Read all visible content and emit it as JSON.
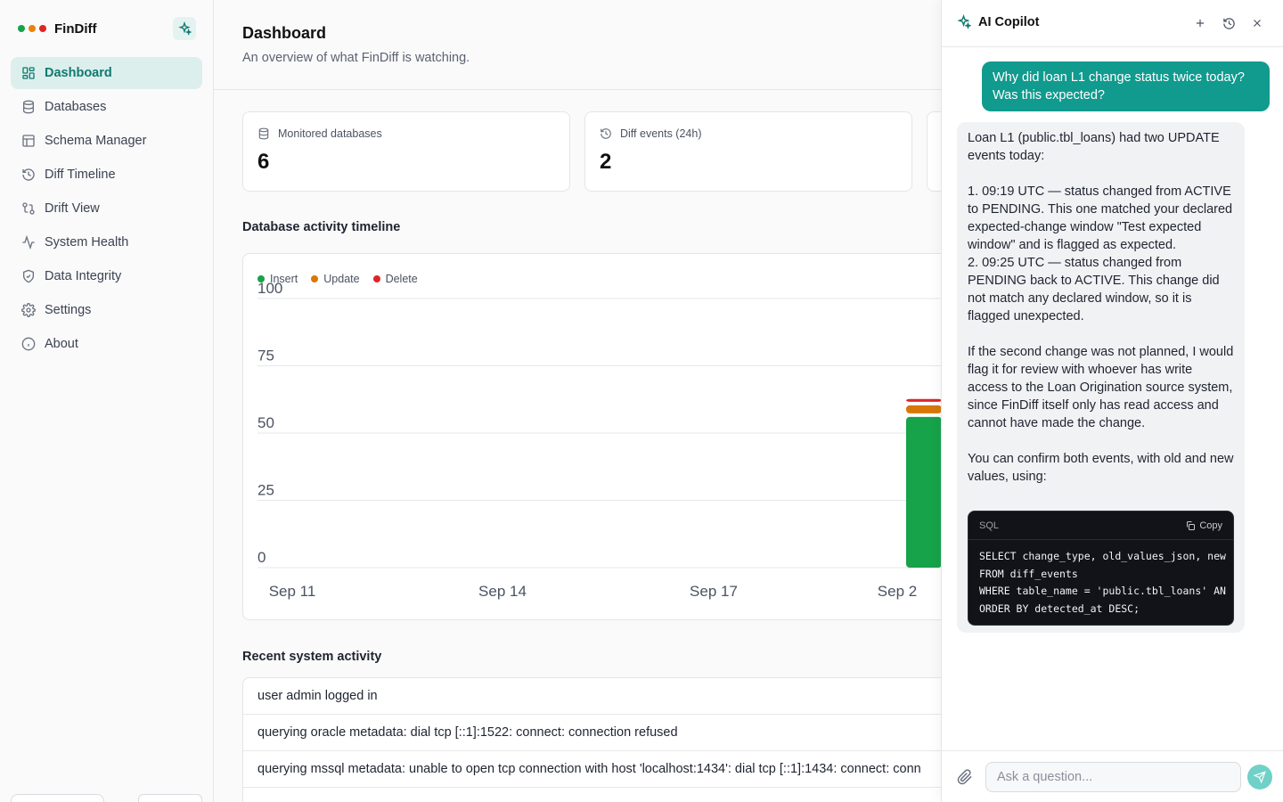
{
  "app": {
    "name": "FinDiff",
    "traffic_dots": [
      "#16a34a",
      "#e8820c",
      "#dc2626"
    ],
    "accent": "#0f7a70"
  },
  "sidebar": {
    "items": [
      {
        "label": "Dashboard",
        "icon": "dashboard-icon",
        "active": true
      },
      {
        "label": "Databases",
        "icon": "database-icon"
      },
      {
        "label": "Schema Manager",
        "icon": "table-icon"
      },
      {
        "label": "Diff Timeline",
        "icon": "history-icon"
      },
      {
        "label": "Drift View",
        "icon": "git-compare-icon"
      },
      {
        "label": "System Health",
        "icon": "activity-icon"
      },
      {
        "label": "Data Integrity",
        "icon": "shield-icon"
      },
      {
        "label": "Settings",
        "icon": "gear-icon"
      },
      {
        "label": "About",
        "icon": "info-icon"
      }
    ]
  },
  "header": {
    "title": "Dashboard",
    "subtitle": "An overview of what FinDiff is watching."
  },
  "stats": [
    {
      "label": "Monitored databases",
      "value": "6",
      "icon": "database-icon"
    },
    {
      "label": "Diff events (24h)",
      "value": "2",
      "icon": "history-icon"
    }
  ],
  "timeline": {
    "title": "Database activity timeline"
  },
  "chart_data": {
    "type": "bar",
    "stacked": true,
    "title": "Database activity timeline",
    "x_ticks": [
      "Sep 11",
      "Sep 14",
      "Sep 17",
      "Sep 2"
    ],
    "y_ticks": [
      "0",
      "25",
      "50",
      "75",
      "100"
    ],
    "ylim": [
      0,
      100
    ],
    "grid": true,
    "legend_position": "top-left",
    "series": [
      {
        "name": "Insert",
        "color": "#16a34a",
        "values": [
          56
        ]
      },
      {
        "name": "Update",
        "color": "#d97706",
        "values": [
          3
        ]
      },
      {
        "name": "Delete",
        "color": "#dc2626",
        "values": [
          1
        ]
      }
    ]
  },
  "activity": {
    "title": "Recent system activity",
    "rows": [
      "user admin logged in",
      "querying oracle metadata: dial tcp [::1]:1522: connect: connection refused",
      "querying mssql metadata: unable to open tcp connection with host 'localhost:1434': dial tcp [::1]:1434: connect: conn",
      ""
    ]
  },
  "copilot": {
    "title": "AI Copilot",
    "user_message": "Why did loan L1 change status twice today? Was this expected?",
    "ai_message": "Loan L1 (public.tbl_loans) had two UPDATE events today:\n\n1. 09:19 UTC — status changed from ACTIVE to PENDING. This one matched your declared expected-change window \"Test expected window\" and is flagged as expected.\n2. 09:25 UTC — status changed from PENDING back to ACTIVE. This change did not match any declared window, so it is flagged unexpected.\n\nIf the second change was not planned, I would flag it for review with whoever has write access to the Loan Origination source system, since FinDiff itself only has read access and cannot have made the change.\n\nYou can confirm both events, with old and new values, using:",
    "code_lang": "SQL",
    "copy_label": "Copy",
    "code": "SELECT change_type, old_values_json, new\nFROM diff_events\nWHERE table_name = 'public.tbl_loans' AN\nORDER BY detected_at DESC;",
    "input_placeholder": "Ask a question..."
  }
}
